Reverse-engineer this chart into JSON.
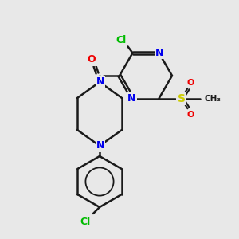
{
  "background_color": "#e8e8e8",
  "figsize": [
    3.0,
    3.0
  ],
  "dpi": 100,
  "bond_color": "#1a1a1a",
  "bond_lw": 1.8,
  "colors": {
    "C": "#1a1a1a",
    "N": "#0000ee",
    "O": "#ee0000",
    "Cl_green": "#00bb00",
    "S": "#cccc00",
    "H": "#1a1a1a"
  },
  "font_size_atom": 9,
  "font_size_small": 7.5
}
